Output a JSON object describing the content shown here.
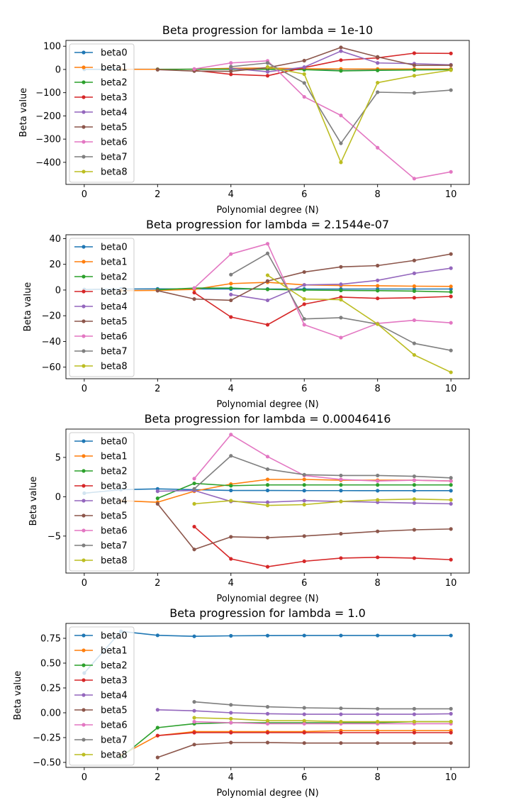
{
  "chart_data": [
    {
      "type": "line",
      "title": "Beta progression for lambda = 1e-10",
      "xlabel": "Polynomial degree (N)",
      "ylabel": "Beta value",
      "xlim": [
        -0.5,
        10.5
      ],
      "ylim": [
        -495,
        125
      ],
      "xticks": [
        0,
        2,
        4,
        6,
        8,
        10
      ],
      "yticks": [
        100,
        0,
        -100,
        -200,
        -300,
        -400
      ],
      "grid": false,
      "legend": "upper-left",
      "series": [
        {
          "name": "beta0",
          "color": "#1f77b4",
          "x": [
            0,
            1,
            2,
            3,
            4,
            5,
            6,
            7,
            8,
            9,
            10
          ],
          "y": [
            0.4,
            0.8,
            0.9,
            0.8,
            0.8,
            0.8,
            0.8,
            0.8,
            0.8,
            0.8,
            0.8
          ]
        },
        {
          "name": "beta1",
          "color": "#ff7f0e",
          "x": [
            1,
            2,
            3,
            4,
            5,
            6,
            7,
            8,
            9,
            10
          ],
          "y": [
            0.5,
            0.5,
            1,
            5,
            6,
            3,
            2,
            2,
            2,
            2
          ]
        },
        {
          "name": "beta2",
          "color": "#2ca02c",
          "x": [
            2,
            3,
            4,
            5,
            6,
            7,
            8,
            9,
            10
          ],
          "y": [
            -0.2,
            1,
            1,
            0.5,
            -1,
            -6,
            -4,
            -2,
            -1
          ]
        },
        {
          "name": "beta3",
          "color": "#d62728",
          "x": [
            3,
            4,
            5,
            6,
            7,
            8,
            9,
            10
          ],
          "y": [
            -4,
            -21,
            -27,
            8,
            40,
            50,
            70,
            69
          ]
        },
        {
          "name": "beta4",
          "color": "#9467bd",
          "x": [
            4,
            5,
            6,
            7,
            8,
            9,
            10
          ],
          "y": [
            5,
            -10,
            10,
            79,
            28,
            25,
            20
          ]
        },
        {
          "name": "beta5",
          "color": "#8c564b",
          "x": [
            2,
            3,
            4,
            5,
            6,
            7,
            8,
            9,
            10
          ],
          "y": [
            -1,
            -7,
            -8,
            8,
            38,
            95,
            54,
            18,
            18
          ]
        },
        {
          "name": "beta6",
          "color": "#e377c2",
          "x": [
            3,
            4,
            5,
            6,
            7,
            8,
            9,
            10
          ],
          "y": [
            2,
            28,
            37,
            -118,
            -198,
            -337,
            -470,
            -441
          ]
        },
        {
          "name": "beta7",
          "color": "#7f7f7f",
          "x": [
            4,
            5,
            6,
            7,
            8,
            9,
            10
          ],
          "y": [
            12,
            28,
            -58,
            -318,
            -98,
            -101,
            -89
          ]
        },
        {
          "name": "beta8",
          "color": "#bcbd22",
          "x": [
            5,
            6,
            7,
            8,
            9,
            10
          ],
          "y": [
            11,
            -20,
            -400,
            -57,
            -27,
            -3
          ]
        }
      ]
    },
    {
      "type": "line",
      "title": "Beta progression for lambda = 2.1544e-07",
      "xlabel": "Polynomial degree (N)",
      "ylabel": "Beta value",
      "xlim": [
        -0.5,
        10.5
      ],
      "ylim": [
        -69,
        43
      ],
      "xticks": [
        0,
        2,
        4,
        6,
        8,
        10
      ],
      "yticks": [
        40,
        20,
        0,
        -20,
        -40,
        -60
      ],
      "grid": false,
      "legend": "upper-left",
      "series": [
        {
          "name": "beta0",
          "color": "#1f77b4",
          "x": [
            0,
            1,
            2,
            3,
            4,
            5,
            6,
            7,
            8,
            9,
            10
          ],
          "y": [
            0.4,
            0.8,
            0.9,
            0.8,
            0.8,
            0.8,
            0.8,
            0.8,
            0.8,
            0.8,
            0.8
          ]
        },
        {
          "name": "beta1",
          "color": "#ff7f0e",
          "x": [
            1,
            2,
            3,
            4,
            5,
            6,
            7,
            8,
            9,
            10
          ],
          "y": [
            -0.5,
            -0.3,
            0.5,
            5,
            6,
            4,
            3.5,
            3.3,
            3,
            2.8
          ]
        },
        {
          "name": "beta2",
          "color": "#2ca02c",
          "x": [
            2,
            3,
            4,
            5,
            6,
            7,
            8,
            9,
            10
          ],
          "y": [
            0.2,
            1.5,
            1.5,
            0.5,
            0,
            -0.3,
            -0.5,
            -0.8,
            -1.5
          ]
        },
        {
          "name": "beta3",
          "color": "#d62728",
          "x": [
            3,
            4,
            5,
            6,
            7,
            8,
            9,
            10
          ],
          "y": [
            -2,
            -21,
            -27,
            -11,
            -5.5,
            -6.5,
            -6,
            -5
          ]
        },
        {
          "name": "beta4",
          "color": "#9467bd",
          "x": [
            4,
            5,
            6,
            7,
            8,
            9,
            10
          ],
          "y": [
            -3.5,
            -8,
            4,
            4.5,
            7.5,
            13,
            17
          ]
        },
        {
          "name": "beta5",
          "color": "#8c564b",
          "x": [
            2,
            3,
            4,
            5,
            6,
            7,
            8,
            9,
            10
          ],
          "y": [
            -0.5,
            -7,
            -8,
            7,
            14,
            18,
            19,
            23,
            28
          ]
        },
        {
          "name": "beta6",
          "color": "#e377c2",
          "x": [
            3,
            4,
            5,
            6,
            7,
            8,
            9,
            10
          ],
          "y": [
            1.5,
            28,
            36,
            -27,
            -37,
            -26,
            -23.5,
            -25.5
          ]
        },
        {
          "name": "beta7",
          "color": "#7f7f7f",
          "x": [
            4,
            5,
            6,
            7,
            8,
            9,
            10
          ],
          "y": [
            12,
            28.5,
            -22.5,
            -21.5,
            -26.5,
            -41.5,
            -47
          ]
        },
        {
          "name": "beta8",
          "color": "#bcbd22",
          "x": [
            5,
            6,
            7,
            8,
            9,
            10
          ],
          "y": [
            11.5,
            -7,
            -7.5,
            -26.5,
            -50.5,
            -64
          ]
        }
      ]
    },
    {
      "type": "line",
      "title": "Beta progression for lambda = 0.00046416",
      "xlabel": "Polynomial degree (N)",
      "ylabel": "Beta value",
      "xlim": [
        -0.5,
        10.5
      ],
      "ylim": [
        -9.7,
        8.6
      ],
      "xticks": [
        0,
        2,
        4,
        6,
        8,
        10
      ],
      "yticks": [
        5,
        0,
        -5
      ],
      "grid": false,
      "legend": "upper-left",
      "series": [
        {
          "name": "beta0",
          "color": "#1f77b4",
          "x": [
            0,
            1,
            2,
            3,
            4,
            5,
            6,
            7,
            8,
            9,
            10
          ],
          "y": [
            0.45,
            0.9,
            1.0,
            0.9,
            0.8,
            0.8,
            0.78,
            0.78,
            0.77,
            0.77,
            0.77
          ]
        },
        {
          "name": "beta1",
          "color": "#ff7f0e",
          "x": [
            1,
            2,
            3,
            4,
            5,
            6,
            7,
            8,
            9,
            10
          ],
          "y": [
            -0.5,
            -0.7,
            0.7,
            1.6,
            2.2,
            2.2,
            2.1,
            2.1,
            2.1,
            2.0
          ]
        },
        {
          "name": "beta2",
          "color": "#2ca02c",
          "x": [
            2,
            3,
            4,
            5,
            6,
            7,
            8,
            9,
            10
          ],
          "y": [
            -0.2,
            1.7,
            1.4,
            1.5,
            1.5,
            1.5,
            1.5,
            1.5,
            1.5
          ]
        },
        {
          "name": "beta3",
          "color": "#d62728",
          "x": [
            3,
            4,
            5,
            6,
            7,
            8,
            9,
            10
          ],
          "y": [
            -3.8,
            -7.9,
            -8.9,
            -8.2,
            -7.8,
            -7.7,
            -7.8,
            -8.0
          ]
        },
        {
          "name": "beta4",
          "color": "#9467bd",
          "x": [
            2,
            3,
            4,
            5,
            6,
            7,
            8,
            9,
            10
          ],
          "y": [
            0.7,
            0.8,
            -0.6,
            -0.7,
            -0.5,
            -0.6,
            -0.7,
            -0.8,
            -0.9
          ]
        },
        {
          "name": "beta5",
          "color": "#8c564b",
          "x": [
            2,
            3,
            4,
            5,
            6,
            7,
            8,
            9,
            10
          ],
          "y": [
            -0.9,
            -6.7,
            -5.1,
            -5.2,
            -5.0,
            -4.7,
            -4.4,
            -4.2,
            -4.1
          ]
        },
        {
          "name": "beta6",
          "color": "#e377c2",
          "x": [
            3,
            4,
            5,
            6,
            7,
            8,
            9,
            10
          ],
          "y": [
            2.3,
            7.9,
            5.1,
            2.7,
            2.2,
            2.0,
            2.1,
            2.0
          ]
        },
        {
          "name": "beta7",
          "color": "#7f7f7f",
          "x": [
            3,
            4,
            5,
            6,
            7,
            8,
            9,
            10
          ],
          "y": [
            1.0,
            5.2,
            3.5,
            2.8,
            2.7,
            2.7,
            2.6,
            2.4
          ]
        },
        {
          "name": "beta8",
          "color": "#bcbd22",
          "x": [
            3,
            4,
            5,
            6,
            7,
            8,
            9,
            10
          ],
          "y": [
            -0.9,
            -0.5,
            -1.1,
            -1.0,
            -0.6,
            -0.4,
            -0.3,
            -0.4
          ]
        }
      ]
    },
    {
      "type": "line",
      "title": "Beta progression for lambda = 1.0",
      "xlabel": "Polynomial degree (N)",
      "ylabel": "Beta value",
      "xlim": [
        -0.5,
        10.5
      ],
      "ylim": [
        -0.55,
        0.9
      ],
      "xticks": [
        0,
        2,
        4,
        6,
        8,
        10
      ],
      "yticks": [
        0.75,
        0.5,
        0.25,
        0.0,
        -0.25,
        -0.5
      ],
      "ytick_labels": [
        "0.75",
        "0.50",
        "0.25",
        "0.00",
        "−0.25",
        "−0.50"
      ],
      "grid": false,
      "legend": "upper-left",
      "series": [
        {
          "name": "beta0",
          "color": "#1f77b4",
          "x": [
            0,
            1,
            2,
            3,
            4,
            5,
            6,
            7,
            8,
            9,
            10
          ],
          "y": [
            0.4,
            0.82,
            0.78,
            0.77,
            0.775,
            0.777,
            0.778,
            0.778,
            0.778,
            0.778,
            0.778
          ]
        },
        {
          "name": "beta1",
          "color": "#ff7f0e",
          "x": [
            1,
            2,
            3,
            4,
            5,
            6,
            7,
            8,
            9,
            10
          ],
          "y": [
            -0.43,
            -0.23,
            -0.19,
            -0.19,
            -0.19,
            -0.19,
            -0.18,
            -0.18,
            -0.18,
            -0.18
          ]
        },
        {
          "name": "beta2",
          "color": "#2ca02c",
          "x": [
            1,
            2,
            3,
            4,
            5,
            6,
            7,
            8,
            9,
            10
          ],
          "y": [
            -0.45,
            -0.15,
            -0.11,
            -0.1,
            -0.1,
            -0.1,
            -0.1,
            -0.1,
            -0.09,
            -0.09
          ]
        },
        {
          "name": "beta3",
          "color": "#d62728",
          "x": [
            2,
            3,
            4,
            5,
            6,
            7,
            8,
            9,
            10
          ],
          "y": [
            -0.23,
            -0.2,
            -0.2,
            -0.2,
            -0.2,
            -0.2,
            -0.2,
            -0.2,
            -0.2
          ]
        },
        {
          "name": "beta4",
          "color": "#9467bd",
          "x": [
            2,
            3,
            4,
            5,
            6,
            7,
            8,
            9,
            10
          ],
          "y": [
            0.03,
            0.02,
            0.0,
            -0.01,
            -0.015,
            -0.015,
            -0.015,
            -0.015,
            -0.01
          ]
        },
        {
          "name": "beta5",
          "color": "#8c564b",
          "x": [
            2,
            3,
            4,
            5,
            6,
            7,
            8,
            9,
            10
          ],
          "y": [
            -0.45,
            -0.32,
            -0.3,
            -0.3,
            -0.305,
            -0.305,
            -0.305,
            -0.305,
            -0.305
          ]
        },
        {
          "name": "beta6",
          "color": "#e377c2",
          "x": [
            3,
            4,
            5,
            6,
            7,
            8,
            9,
            10
          ],
          "y": [
            -0.09,
            -0.1,
            -0.11,
            -0.11,
            -0.11,
            -0.11,
            -0.11,
            -0.11
          ]
        },
        {
          "name": "beta7",
          "color": "#7f7f7f",
          "x": [
            3,
            4,
            5,
            6,
            7,
            8,
            9,
            10
          ],
          "y": [
            0.11,
            0.08,
            0.06,
            0.05,
            0.045,
            0.04,
            0.04,
            0.04
          ]
        },
        {
          "name": "beta8",
          "color": "#bcbd22",
          "x": [
            3,
            4,
            5,
            6,
            7,
            8,
            9,
            10
          ],
          "y": [
            -0.05,
            -0.06,
            -0.08,
            -0.08,
            -0.09,
            -0.09,
            -0.09,
            -0.09
          ]
        }
      ]
    }
  ]
}
